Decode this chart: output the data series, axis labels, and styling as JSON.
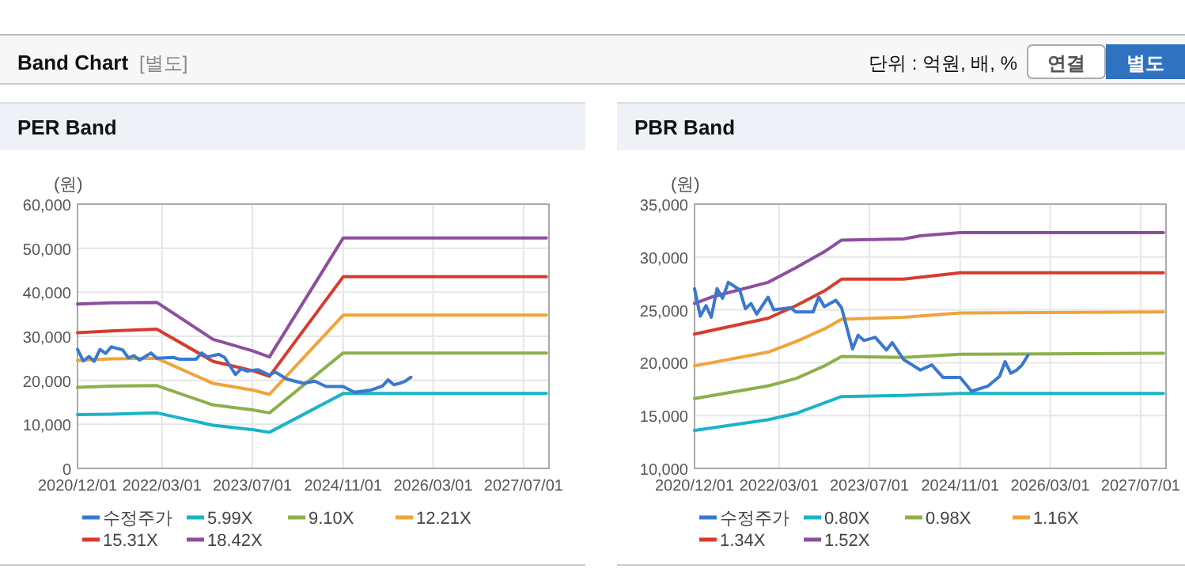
{
  "chart_data": [
    {
      "type": "other",
      "title": "Band Chart",
      "subtitle": "[별도]",
      "annotations": [
        "단위 : 억원, 배, %",
        "연결",
        "별도"
      ]
    },
    {
      "type": "line",
      "title": "PER Band",
      "ylabel": "(원)",
      "xlim": [
        "2020-12-01",
        "2027-11-15"
      ],
      "xticks": [
        {
          "value": "2020-12-01",
          "label": "2020/12/01"
        },
        {
          "value": "2022-03-01",
          "label": "2022/03/01"
        },
        {
          "value": "2023-07-01",
          "label": "2023/07/01"
        },
        {
          "value": "2024-11-01",
          "label": "2024/11/01"
        },
        {
          "value": "2026-03-01",
          "label": "2026/03/01"
        },
        {
          "value": "2027-07-01",
          "label": "2027/07/01"
        }
      ],
      "ylim": [
        0,
        60000
      ],
      "yticks": [
        {
          "value": 0,
          "label": "0"
        },
        {
          "value": 10000,
          "label": "10,000"
        },
        {
          "value": 20000,
          "label": "20,000"
        },
        {
          "value": 30000,
          "label": "30,000"
        },
        {
          "value": 40000,
          "label": "40,000"
        },
        {
          "value": 50000,
          "label": "50,000"
        },
        {
          "value": 60000,
          "label": "60,000"
        }
      ],
      "grid": true,
      "legend": "bottom",
      "marker": "none",
      "series": [
        {
          "name": "수정주가",
          "color": "#3a78d0",
          "x": [
            "2020-12",
            "2021-01",
            "2021-02",
            "2021-03",
            "2021-04",
            "2021-05",
            "2021-06",
            "2021-08",
            "2021-09",
            "2021-10",
            "2021-11",
            "2022-01",
            "2022-02",
            "2022-05",
            "2022-06",
            "2022-09",
            "2022-10",
            "2022-11",
            "2023-01",
            "2023-02",
            "2023-04",
            "2023-05",
            "2023-06",
            "2023-08",
            "2023-10",
            "2023-11",
            "2024-01",
            "2024-04",
            "2024-06",
            "2024-08",
            "2024-11",
            "2025-01",
            "2025-04",
            "2025-06",
            "2025-07",
            "2025-08",
            "2025-09",
            "2025-10",
            "2025-11"
          ],
          "values": [
            27000,
            24400,
            25400,
            24300,
            27000,
            26100,
            27600,
            26900,
            25100,
            25600,
            24600,
            26200,
            25000,
            25200,
            24800,
            24800,
            26200,
            25300,
            25900,
            25200,
            21300,
            22600,
            22100,
            22400,
            21200,
            21900,
            20300,
            19300,
            19800,
            18600,
            18600,
            17300,
            17800,
            18700,
            20100,
            19000,
            19300,
            19800,
            20700
          ]
        },
        {
          "name": "5.99X",
          "color": "#1bb3c7",
          "x": [
            "2020-12",
            "2021-06",
            "2022-02",
            "2022-12",
            "2023-07",
            "2023-10",
            "2024-11",
            "2027-11"
          ],
          "values": [
            12200,
            12300,
            12600,
            9800,
            8800,
            8200,
            17000,
            17000
          ]
        },
        {
          "name": "9.10X",
          "color": "#8cb04c",
          "x": [
            "2020-12",
            "2021-06",
            "2022-02",
            "2022-12",
            "2023-07",
            "2023-10",
            "2024-11",
            "2027-11"
          ],
          "values": [
            18400,
            18700,
            18800,
            14400,
            13300,
            12600,
            26200,
            26200
          ]
        },
        {
          "name": "12.21X",
          "color": "#f0a43a",
          "x": [
            "2020-12",
            "2021-06",
            "2022-02",
            "2022-12",
            "2023-07",
            "2023-10",
            "2024-11",
            "2027-11"
          ],
          "values": [
            24500,
            24900,
            25000,
            19300,
            17800,
            16800,
            34800,
            34800
          ]
        },
        {
          "name": "15.31X",
          "color": "#d93a2e",
          "x": [
            "2020-12",
            "2021-06",
            "2022-02",
            "2022-12",
            "2023-07",
            "2023-10",
            "2024-11",
            "2027-11"
          ],
          "values": [
            30800,
            31200,
            31600,
            24300,
            22200,
            20900,
            43500,
            43500
          ]
        },
        {
          "name": "18.42X",
          "color": "#8e4e9e",
          "x": [
            "2020-12",
            "2021-06",
            "2022-02",
            "2022-12",
            "2023-07",
            "2023-10",
            "2024-11",
            "2027-11"
          ],
          "values": [
            37300,
            37600,
            37700,
            29300,
            26700,
            25300,
            52300,
            52300
          ]
        }
      ]
    },
    {
      "type": "line",
      "title": "PBR Band",
      "ylabel": "(원)",
      "xlim": [
        "2020-12-01",
        "2027-11-15"
      ],
      "xticks": [
        {
          "value": "2020-12-01",
          "label": "2020/12/01"
        },
        {
          "value": "2022-03-01",
          "label": "2022/03/01"
        },
        {
          "value": "2023-07-01",
          "label": "2023/07/01"
        },
        {
          "value": "2024-11-01",
          "label": "2024/11/01"
        },
        {
          "value": "2026-03-01",
          "label": "2026/03/01"
        },
        {
          "value": "2027-07-01",
          "label": "2027/07/01"
        }
      ],
      "ylim": [
        10000,
        35000
      ],
      "yticks": [
        {
          "value": 10000,
          "label": "10,000"
        },
        {
          "value": 15000,
          "label": "15,000"
        },
        {
          "value": 20000,
          "label": "20,000"
        },
        {
          "value": 25000,
          "label": "25,000"
        },
        {
          "value": 30000,
          "label": "30,000"
        },
        {
          "value": 35000,
          "label": "35,000"
        }
      ],
      "grid": true,
      "legend": "bottom",
      "marker": "none",
      "series": [
        {
          "name": "수정주가",
          "color": "#3a78d0",
          "x": [
            "2020-12",
            "2021-01",
            "2021-02",
            "2021-03",
            "2021-04",
            "2021-05",
            "2021-06",
            "2021-08",
            "2021-09",
            "2021-10",
            "2021-11",
            "2022-01",
            "2022-02",
            "2022-05",
            "2022-06",
            "2022-09",
            "2022-10",
            "2022-11",
            "2023-01",
            "2023-02",
            "2023-04",
            "2023-05",
            "2023-06",
            "2023-08",
            "2023-10",
            "2023-11",
            "2024-01",
            "2024-04",
            "2024-06",
            "2024-08",
            "2024-11",
            "2025-01",
            "2025-04",
            "2025-06",
            "2025-07",
            "2025-08",
            "2025-09",
            "2025-10",
            "2025-11"
          ],
          "values": [
            27000,
            24400,
            25400,
            24300,
            27000,
            26100,
            27600,
            26900,
            25100,
            25600,
            24600,
            26200,
            25000,
            25200,
            24800,
            24800,
            26200,
            25300,
            25900,
            25200,
            21300,
            22600,
            22100,
            22400,
            21200,
            21900,
            20300,
            19300,
            19800,
            18600,
            18600,
            17300,
            17800,
            18700,
            20100,
            19000,
            19300,
            19800,
            20700
          ]
        },
        {
          "name": "0.80X",
          "color": "#1bb3c7",
          "x": [
            "2020-12",
            "2022-01",
            "2022-06",
            "2022-11",
            "2023-02",
            "2024-01",
            "2024-11",
            "2027-11"
          ],
          "values": [
            13600,
            14600,
            15200,
            16200,
            16800,
            16900,
            17100,
            17100
          ]
        },
        {
          "name": "0.98X",
          "color": "#8cb04c",
          "x": [
            "2020-12",
            "2022-01",
            "2022-06",
            "2022-11",
            "2023-02",
            "2024-01",
            "2024-11",
            "2027-11"
          ],
          "values": [
            16600,
            17800,
            18500,
            19700,
            20600,
            20500,
            20800,
            20900
          ]
        },
        {
          "name": "1.16X",
          "color": "#f0a43a",
          "x": [
            "2020-12",
            "2022-01",
            "2022-06",
            "2022-11",
            "2023-02",
            "2024-01",
            "2024-11",
            "2027-11"
          ],
          "values": [
            19700,
            21000,
            22000,
            23200,
            24100,
            24300,
            24700,
            24800
          ]
        },
        {
          "name": "1.34X",
          "color": "#d93a2e",
          "x": [
            "2020-12",
            "2022-01",
            "2022-06",
            "2022-11",
            "2023-02",
            "2024-01",
            "2024-11",
            "2027-11"
          ],
          "values": [
            22700,
            24200,
            25400,
            26800,
            27900,
            27900,
            28500,
            28500
          ]
        },
        {
          "name": "1.52X",
          "color": "#8e4e9e",
          "x": [
            "2020-12",
            "2021-03",
            "2022-01",
            "2022-06",
            "2022-11",
            "2023-02",
            "2024-01",
            "2024-04",
            "2024-11",
            "2027-11"
          ],
          "values": [
            25600,
            26200,
            27600,
            29000,
            30500,
            31600,
            31700,
            32000,
            32300,
            32300
          ]
        }
      ]
    }
  ]
}
